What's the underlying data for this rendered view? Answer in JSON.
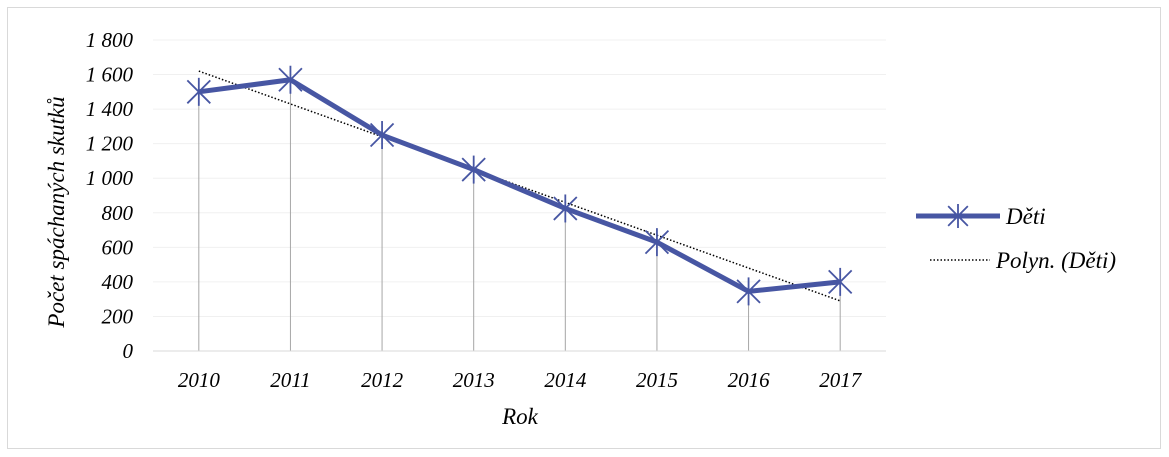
{
  "chart_data": {
    "type": "line",
    "categories": [
      "2010",
      "2011",
      "2012",
      "2013",
      "2014",
      "2015",
      "2016",
      "2017"
    ],
    "series": [
      {
        "name": "Děti",
        "values": [
          1500,
          1570,
          1250,
          1050,
          825,
          630,
          345,
          400
        ],
        "color": "#4756a3",
        "marker": "star"
      }
    ],
    "trendline": {
      "name": "Polyn. (Děti)",
      "start": 1620,
      "end": 290,
      "style": "dotted",
      "color": "#000000"
    },
    "ylabel": "Počet spáchaných skutků",
    "xlabel": "Rok",
    "ylim": [
      0,
      1800
    ],
    "yticks": [
      0,
      200,
      400,
      600,
      800,
      1000,
      1200,
      1400,
      1600,
      1800
    ],
    "ytick_labels": [
      "0",
      "200",
      "400",
      "600",
      "800",
      "1 000",
      "1 200",
      "1 400",
      "1 600",
      "1 800"
    ],
    "grid": true,
    "drop_lines": true,
    "legend_position": "right"
  }
}
